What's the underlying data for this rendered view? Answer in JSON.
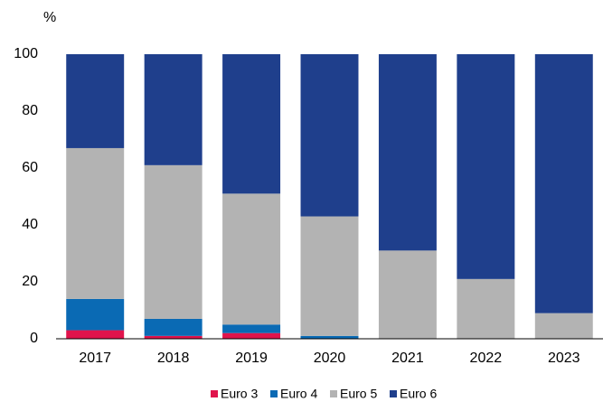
{
  "chart_data": {
    "type": "stacked_bar",
    "y_label": "%",
    "categories": [
      "2017",
      "2018",
      "2019",
      "2020",
      "2021",
      "2022",
      "2023"
    ],
    "series": [
      {
        "name": "Euro 3",
        "color": "#e0144c",
        "values": [
          3,
          1,
          2,
          0,
          0,
          0,
          0
        ]
      },
      {
        "name": "Euro 4",
        "color": "#0a6ab4",
        "values": [
          11,
          6,
          3,
          1,
          0,
          0,
          0
        ]
      },
      {
        "name": "Euro 5",
        "color": "#b3b3b3",
        "values": [
          53,
          54,
          46,
          42,
          31,
          21,
          9
        ]
      },
      {
        "name": "Euro 6",
        "color": "#1f3f8c",
        "values": [
          33,
          39,
          49,
          57,
          69,
          79,
          91
        ]
      }
    ],
    "ylim": [
      0,
      100
    ],
    "yticks": [
      0,
      20,
      40,
      60,
      80,
      100
    ],
    "grid": false,
    "legend": "bottom"
  }
}
